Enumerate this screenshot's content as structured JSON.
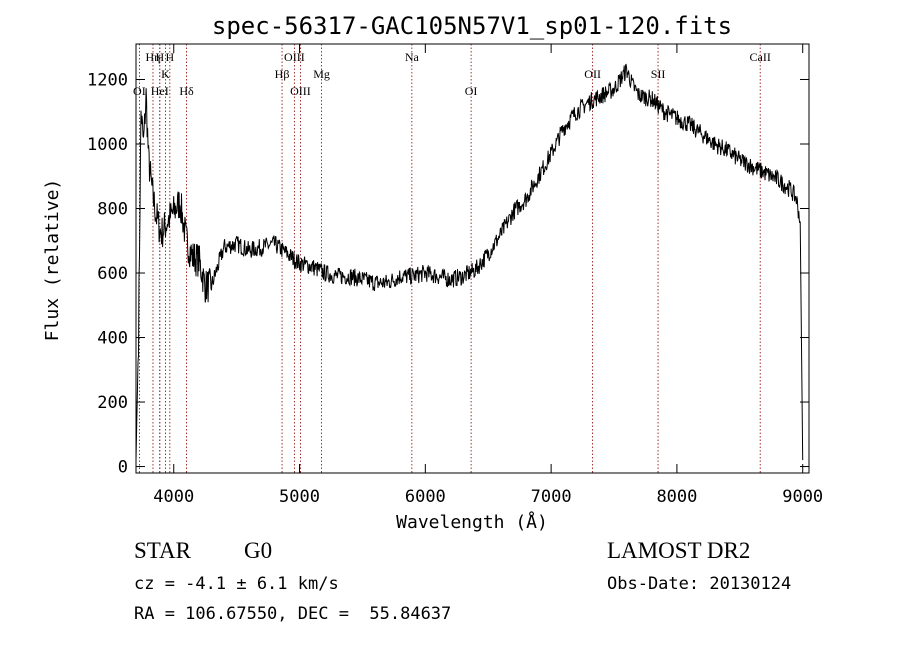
{
  "chart_data": {
    "type": "line",
    "title": "spec-56317-GAC105N57V1_sp01-120.fits",
    "xlabel": "Wavelength (Å)",
    "ylabel": "Flux (relative)",
    "xlim": [
      3700,
      9050
    ],
    "ylim": [
      -20,
      1310
    ],
    "xticks": [
      4000,
      5000,
      6000,
      7000,
      8000,
      9000
    ],
    "yticks": [
      0,
      200,
      400,
      600,
      800,
      1000,
      1200
    ],
    "grid": false,
    "line_color": "#000000",
    "marker_color": "#8b0000",
    "series": [
      {
        "x": [
          3700,
          3720,
          3740,
          3760,
          3780,
          3800,
          3830,
          3860,
          3900,
          3950,
          4000,
          4050,
          4100,
          4150,
          4200,
          4250,
          4300,
          4350,
          4400,
          4500,
          4600,
          4700,
          4800,
          4900,
          5000,
          5100,
          5200,
          5300,
          5400,
          5500,
          5600,
          5700,
          5800,
          5900,
          6000,
          6100,
          6200,
          6300,
          6400,
          6500,
          6600,
          6700,
          6800,
          6900,
          7000,
          7100,
          7200,
          7300,
          7400,
          7500,
          7550,
          7600,
          7650,
          7700,
          7800,
          7900,
          8000,
          8100,
          8200,
          8300,
          8400,
          8500,
          8600,
          8700,
          8800,
          8900,
          8950,
          8980,
          9000
        ],
        "y": [
          20,
          400,
          1100,
          1000,
          1150,
          950,
          850,
          780,
          720,
          760,
          790,
          820,
          700,
          650,
          640,
          560,
          560,
          620,
          680,
          690,
          670,
          680,
          690,
          660,
          630,
          620,
          600,
          590,
          590,
          580,
          570,
          570,
          590,
          590,
          600,
          590,
          580,
          590,
          610,
          660,
          720,
          790,
          830,
          900,
          970,
          1050,
          1100,
          1130,
          1150,
          1170,
          1200,
          1230,
          1180,
          1150,
          1140,
          1100,
          1080,
          1060,
          1030,
          1000,
          980,
          950,
          930,
          910,
          890,
          860,
          830,
          760,
          20
        ]
      }
    ],
    "lines": [
      {
        "label": "OI",
        "wavelength": 3727,
        "row": 3
      },
      {
        "label": "Hη",
        "wavelength": 3835,
        "row": 1
      },
      {
        "label": "H",
        "wavelength": 3889,
        "row": 1
      },
      {
        "label": "HeI",
        "wavelength": 3889,
        "row": 3
      },
      {
        "label": "K",
        "wavelength": 3934,
        "row": 2
      },
      {
        "label": "H",
        "wavelength": 3969,
        "row": 1
      },
      {
        "label": "Hδ",
        "wavelength": 4102,
        "row": 3
      },
      {
        "label": "OIII",
        "wavelength": 4959,
        "row": 1
      },
      {
        "label": "Hβ",
        "wavelength": 4861,
        "row": 2
      },
      {
        "label": "OIII",
        "wavelength": 5007,
        "row": 3
      },
      {
        "label": "Mg",
        "wavelength": 5175,
        "row": 2
      },
      {
        "label": "Na",
        "wavelength": 5893,
        "row": 1
      },
      {
        "label": "OI",
        "wavelength": 6364,
        "row": 3
      },
      {
        "label": "OII",
        "wavelength": 7330,
        "row": 2
      },
      {
        "label": "SII",
        "wavelength": 7850,
        "row": 2
      },
      {
        "label": "CaII",
        "wavelength": 8662,
        "row": 1
      }
    ]
  },
  "footer": {
    "object_class": "STAR",
    "subclass": "G0",
    "survey": "LAMOST DR2",
    "velocity": "cz = -4.1 ± 6.1 km/s",
    "obs_date": "Obs-Date: 20130124",
    "coords": "RA = 106.67550, DEC =  55.84637"
  }
}
